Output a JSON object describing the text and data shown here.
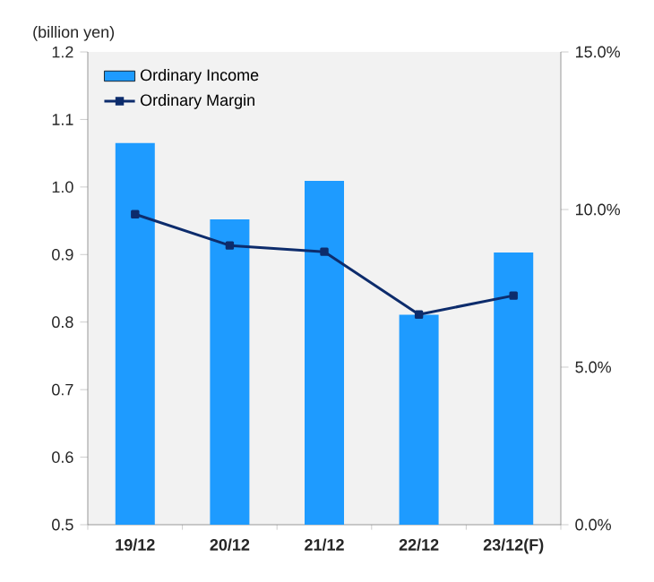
{
  "chart_data": {
    "type": "bar",
    "ylabel": "(billion yen)",
    "categories": [
      "19/12",
      "20/12",
      "21/12",
      "22/12",
      "23/12(F)"
    ],
    "series": [
      {
        "name": "Ordinary Income",
        "color": "#1e9bff",
        "values": [
          1.065,
          0.952,
          1.009,
          0.811,
          0.903
        ]
      },
      {
        "name": "Ordinary Margin",
        "type": "line",
        "axis": "y2",
        "color": "#0d2c6c",
        "marker": "square",
        "values": [
          9.85,
          8.86,
          8.66,
          6.67,
          7.27
        ]
      }
    ],
    "ylim": [
      0.5,
      1.2
    ],
    "yticks": [
      {
        "value": 0.5,
        "label": "0.5"
      },
      {
        "value": 0.6,
        "label": "0.6"
      },
      {
        "value": 0.7,
        "label": "0.7"
      },
      {
        "value": 0.8,
        "label": "0.8"
      },
      {
        "value": 0.9,
        "label": "0.9"
      },
      {
        "value": 1.0,
        "label": "1.0"
      },
      {
        "value": 1.1,
        "label": "1.1"
      },
      {
        "value": 1.2,
        "label": "1.2"
      }
    ],
    "y2lim": [
      0,
      15
    ],
    "y2ticks": [
      {
        "value": 0,
        "label": "0.0%"
      },
      {
        "value": 5,
        "label": "5.0%"
      },
      {
        "value": 10,
        "label": "10.0%"
      },
      {
        "value": 15,
        "label": "15.0%"
      }
    ],
    "legend": "top left",
    "grid": false
  }
}
